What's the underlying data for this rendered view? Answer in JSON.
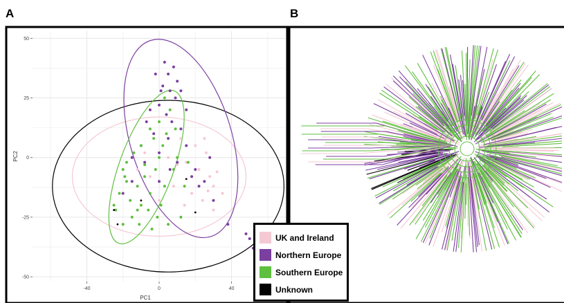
{
  "panel_labels": {
    "a": "A",
    "b": "B"
  },
  "colors": {
    "uk_ireland": "#f4c9d3",
    "northern_europe": "#7b3fa0",
    "southern_europe": "#5fbf3f",
    "unknown": "#000000"
  },
  "legend": [
    {
      "label": "UK and Ireland",
      "color": "#f4c9d3"
    },
    {
      "label": "Northern Europe",
      "color": "#7b3fa0"
    },
    {
      "label": "Southern Europe",
      "color": "#5fbf3f"
    },
    {
      "label": "Unknown",
      "color": "#000000"
    }
  ],
  "chart_data": [
    {
      "type": "scatter",
      "panel": "A",
      "xlabel": "PC1",
      "ylabel": "PC2",
      "xlim": [
        -70,
        70
      ],
      "ylim": [
        -52,
        53
      ],
      "xticks": [
        -40,
        0,
        40
      ],
      "yticks": [
        50,
        25,
        0,
        -25,
        -50
      ],
      "grid": true,
      "ellipses": [
        {
          "group": "Unknown",
          "color": "#000000",
          "cx": 5,
          "cy": -12,
          "rx": 64,
          "ry": 36,
          "angle": 0
        },
        {
          "group": "UK and Ireland",
          "color": "#f4c9d3",
          "cx": 0,
          "cy": -8,
          "rx": 48,
          "ry": 25,
          "angle": 0
        },
        {
          "group": "Northern Europe",
          "color": "#7b3fa0",
          "cx": 12,
          "cy": 8,
          "rx": 28,
          "ry": 43,
          "angle": -17
        },
        {
          "group": "Southern Europe",
          "color": "#5fbf3f",
          "cx": -7,
          "cy": -4,
          "rx": 15,
          "ry": 34,
          "angle": 20
        }
      ],
      "series": [
        {
          "name": "UK and Ireland",
          "color": "#f4c9d3",
          "points": [
            [
              15,
              -2
            ],
            [
              22,
              -5
            ],
            [
              26,
              2
            ],
            [
              28,
              -8
            ],
            [
              30,
              -12
            ],
            [
              18,
              -15
            ],
            [
              10,
              -3
            ],
            [
              8,
              -12
            ],
            [
              32,
              -6
            ],
            [
              27,
              -14
            ],
            [
              20,
              5
            ],
            [
              5,
              0
            ],
            [
              -5,
              -8
            ],
            [
              -12,
              -5
            ],
            [
              24,
              -18
            ],
            [
              12,
              8
            ],
            [
              35,
              -15
            ],
            [
              14,
              -20
            ],
            [
              25,
              8
            ],
            [
              -8,
              2
            ],
            [
              0,
              -18
            ],
            [
              30,
              -22
            ]
          ]
        },
        {
          "name": "Northern Europe",
          "color": "#7b3fa0",
          "points": [
            [
              3,
              40
            ],
            [
              5,
              35
            ],
            [
              8,
              38
            ],
            [
              10,
              32
            ],
            [
              2,
              30
            ],
            [
              6,
              28
            ],
            [
              9,
              25
            ],
            [
              0,
              22
            ],
            [
              -5,
              20
            ],
            [
              4,
              18
            ],
            [
              7,
              15
            ],
            [
              12,
              12
            ],
            [
              -3,
              10
            ],
            [
              5,
              8
            ],
            [
              15,
              5
            ],
            [
              -10,
              5
            ],
            [
              0,
              2
            ],
            [
              20,
              -5
            ],
            [
              25,
              -10
            ],
            [
              30,
              -18
            ],
            [
              38,
              -28
            ],
            [
              50,
              -34
            ],
            [
              52,
              -38
            ],
            [
              48,
              -32
            ],
            [
              54,
              -36
            ],
            [
              -15,
              -10
            ],
            [
              -20,
              -15
            ],
            [
              10,
              -2
            ],
            [
              18,
              -8
            ],
            [
              0,
              -10
            ],
            [
              6,
              -5
            ],
            [
              -8,
              -2
            ],
            [
              15,
              20
            ],
            [
              -2,
              35
            ],
            [
              1,
              28
            ],
            [
              12,
              28
            ],
            [
              -7,
              15
            ],
            [
              -15,
              0
            ],
            [
              22,
              -12
            ],
            [
              28,
              0
            ]
          ]
        },
        {
          "name": "Southern Europe",
          "color": "#5fbf3f",
          "points": [
            [
              -20,
              -5
            ],
            [
              -18,
              -10
            ],
            [
              -22,
              -15
            ],
            [
              -25,
              -20
            ],
            [
              -15,
              -25
            ],
            [
              -10,
              -20
            ],
            [
              -12,
              -12
            ],
            [
              -8,
              -8
            ],
            [
              -5,
              -15
            ],
            [
              -2,
              -5
            ],
            [
              0,
              0
            ],
            [
              2,
              5
            ],
            [
              4,
              10
            ],
            [
              0,
              15
            ],
            [
              -5,
              12
            ],
            [
              -10,
              5
            ],
            [
              -14,
              2
            ],
            [
              -18,
              -2
            ],
            [
              -20,
              -28
            ],
            [
              -24,
              -22
            ],
            [
              -16,
              -18
            ],
            [
              -6,
              -22
            ],
            [
              3,
              -12
            ],
            [
              8,
              -5
            ],
            [
              10,
              0
            ],
            [
              6,
              20
            ],
            [
              -3,
              8
            ],
            [
              -8,
              -3
            ],
            [
              -12,
              -22
            ],
            [
              1,
              -20
            ],
            [
              5,
              -28
            ],
            [
              12,
              -25
            ],
            [
              -4,
              -30
            ],
            [
              14,
              -12
            ],
            [
              9,
              12
            ],
            [
              -1,
              -25
            ],
            [
              -19,
              -8
            ],
            [
              -11,
              -28
            ],
            [
              16,
              -2
            ],
            [
              3,
              25
            ]
          ]
        },
        {
          "name": "Unknown",
          "color": "#000000",
          "points": [
            [
              15,
              -9
            ],
            [
              20,
              -23
            ],
            [
              -25,
              -22
            ],
            [
              -23,
              -28
            ],
            [
              -10,
              -18
            ]
          ]
        }
      ]
    },
    {
      "type": "tree",
      "panel": "B",
      "layout": "unrooted radial phylogenetic tree",
      "tip_groups": [
        "UK and Ireland",
        "Northern Europe",
        "Southern Europe",
        "Unknown"
      ]
    }
  ]
}
